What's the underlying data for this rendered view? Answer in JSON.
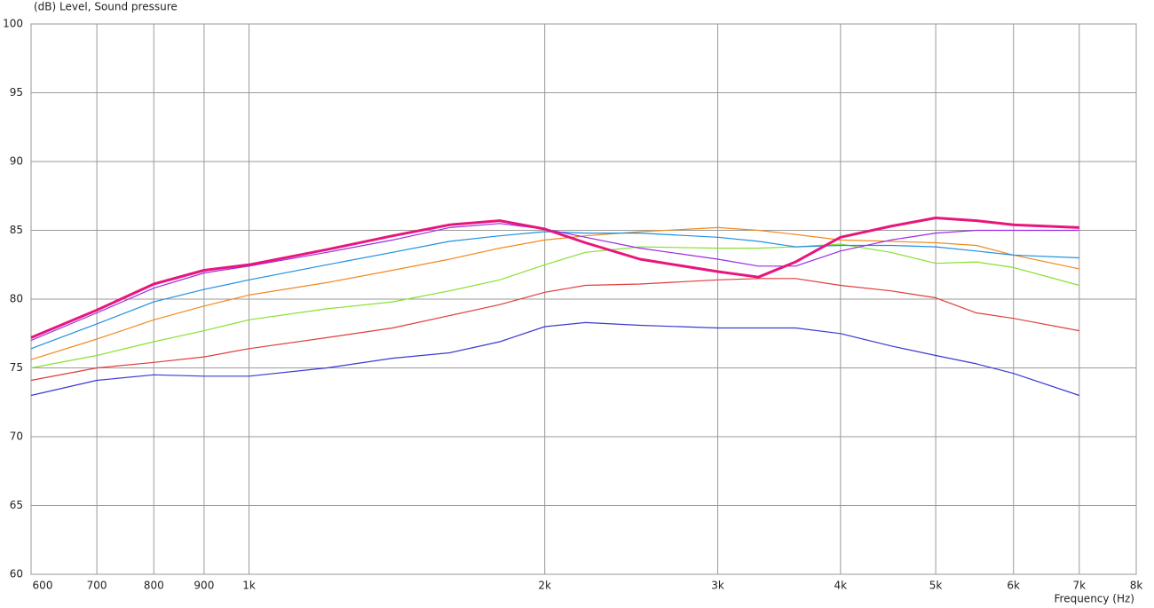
{
  "chart_data": {
    "type": "line",
    "title": "(dB)  Level, Sound pressure",
    "x_label": "Frequency  (Hz)",
    "log_x": true,
    "grid": true,
    "x": [
      600,
      700,
      800,
      900,
      1000,
      1200,
      1400,
      1600,
      1800,
      2000,
      2200,
      2500,
      3000,
      3300,
      3600,
      4000,
      4500,
      5000,
      5500,
      6000,
      7000
    ],
    "xlim": [
      600,
      8000
    ],
    "xticks": [
      600,
      700,
      800,
      900,
      {
        "value": 1000,
        "label": "1k"
      },
      {
        "value": 2000,
        "label": "2k"
      },
      {
        "value": 3000,
        "label": "3k"
      },
      {
        "value": 4000,
        "label": "4k"
      },
      {
        "value": 5000,
        "label": "5k"
      },
      {
        "value": 6000,
        "label": "6k"
      },
      {
        "value": 7000,
        "label": "7k"
      },
      {
        "value": 8000,
        "label": "8k"
      }
    ],
    "ylim": [
      60,
      100
    ],
    "yticks": [
      60,
      65,
      70,
      75,
      80,
      85,
      90,
      95,
      100
    ],
    "series": [
      {
        "color": "#3a3ad2",
        "width": 1.2,
        "values": [
          73.0,
          74.1,
          74.5,
          74.4,
          74.4,
          75.0,
          75.7,
          76.1,
          76.9,
          78.0,
          78.3,
          78.1,
          77.9,
          77.9,
          77.9,
          77.5,
          76.6,
          75.9,
          75.3,
          74.6,
          73.0
        ]
      },
      {
        "color": "#e03c3c",
        "width": 1.2,
        "values": [
          74.1,
          75.0,
          75.4,
          75.8,
          76.4,
          77.2,
          77.9,
          78.8,
          79.6,
          80.5,
          81.0,
          81.1,
          81.4,
          81.5,
          81.5,
          81.0,
          80.6,
          80.1,
          79.0,
          78.6,
          77.7
        ]
      },
      {
        "color": "#88e030",
        "width": 1.2,
        "values": [
          75.0,
          75.9,
          76.9,
          77.7,
          78.5,
          79.3,
          79.8,
          80.6,
          81.4,
          82.5,
          83.4,
          83.8,
          83.7,
          83.7,
          83.8,
          84.0,
          83.4,
          82.6,
          82.7,
          82.3,
          81.0
        ]
      },
      {
        "color": "#f08a20",
        "width": 1.2,
        "values": [
          75.6,
          77.1,
          78.5,
          79.5,
          80.3,
          81.2,
          82.1,
          82.9,
          83.7,
          84.3,
          84.6,
          84.9,
          85.2,
          85.0,
          84.7,
          84.3,
          84.2,
          84.1,
          83.9,
          83.2,
          82.2
        ]
      },
      {
        "color": "#1e90e0",
        "width": 1.2,
        "values": [
          76.4,
          78.2,
          79.8,
          80.7,
          81.4,
          82.5,
          83.4,
          84.2,
          84.6,
          84.9,
          84.8,
          84.8,
          84.5,
          84.2,
          83.8,
          83.9,
          83.9,
          83.8,
          83.5,
          83.2,
          83.0
        ]
      },
      {
        "color": "#9a2be2",
        "width": 1.2,
        "values": [
          77.0,
          79.0,
          80.8,
          81.9,
          82.4,
          83.4,
          84.3,
          85.2,
          85.5,
          85.1,
          84.5,
          83.7,
          82.9,
          82.4,
          82.4,
          83.5,
          84.3,
          84.8,
          85.0,
          85.0,
          85.0
        ]
      },
      {
        "color": "#e8167c",
        "width": 3,
        "values": [
          77.2,
          79.2,
          81.1,
          82.1,
          82.5,
          83.6,
          84.6,
          85.4,
          85.7,
          85.1,
          84.1,
          82.9,
          82.0,
          81.6,
          82.7,
          84.5,
          85.3,
          85.9,
          85.7,
          85.4,
          85.2
        ]
      }
    ]
  }
}
